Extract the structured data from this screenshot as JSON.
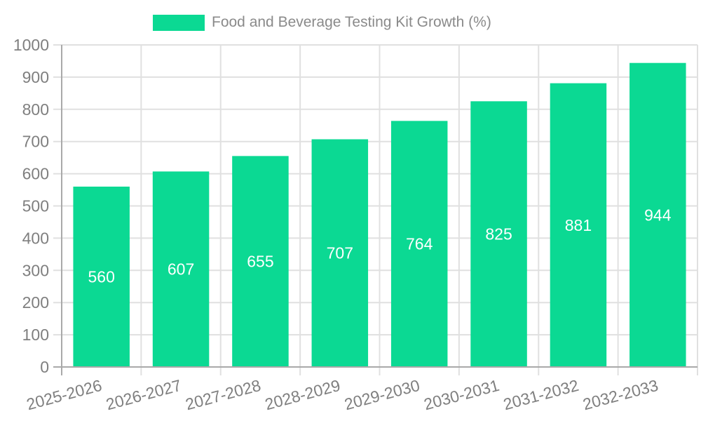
{
  "legend": {
    "position": "top",
    "items": [
      {
        "label": "Food and Beverage Testing Kit Growth (%)"
      }
    ]
  },
  "chart_data": {
    "type": "bar",
    "title": "Food and Beverage Testing Kit Growth (%)",
    "categories": [
      "2025-2026",
      "2026-2027",
      "2027-2028",
      "2028-2029",
      "2029-2030",
      "2030-2031",
      "2031-2032",
      "2032-2033"
    ],
    "values": [
      560,
      607,
      655,
      707,
      764,
      825,
      881,
      944
    ],
    "series": [
      {
        "name": "Food and Beverage Testing Kit Growth (%)",
        "values": [
          560,
          607,
          655,
          707,
          764,
          825,
          881,
          944
        ]
      }
    ],
    "xlabel": "",
    "ylabel": "",
    "ylim": [
      0,
      1000
    ],
    "yticks": [
      0,
      100,
      200,
      300,
      400,
      500,
      600,
      700,
      800,
      900,
      1000
    ],
    "grid": true,
    "legend_position": "top",
    "x_tick_rotation_deg": -15,
    "value_label_placement": "inside-center",
    "colors": {
      "bar": "#0bd993",
      "grid": "#e0e0e0",
      "axis": "#a9a9a9",
      "tick_label": "#7f7f7f",
      "value_label": "#ffffff",
      "legend_label": "#8a8a8a"
    }
  }
}
